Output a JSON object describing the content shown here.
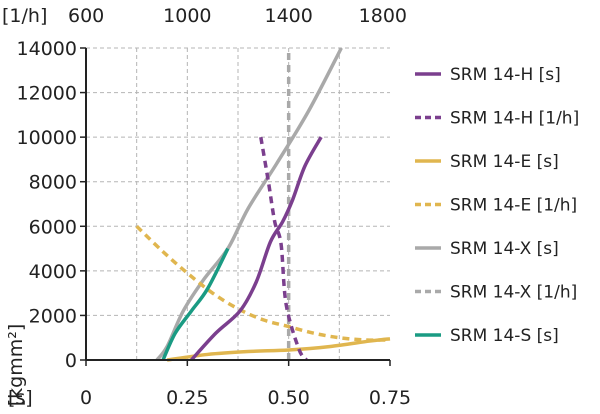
{
  "chart_data": {
    "type": "line",
    "title": "",
    "y_axis": {
      "label": "[kgmm²]",
      "range": [
        0,
        14000
      ],
      "ticks": [
        "0",
        "2000",
        "4000",
        "6000",
        "8000",
        "10000",
        "12000",
        "14000"
      ]
    },
    "x_axis_bottom": {
      "label": "[s]",
      "range": [
        0,
        0.75
      ],
      "ticks": [
        "0",
        "0.25",
        "0.50",
        "0.75"
      ],
      "tick_values": [
        0,
        0.25,
        0.5,
        0.75
      ]
    },
    "x_axis_top": {
      "label": "[1/h]",
      "range": [
        600,
        1800
      ],
      "ticks": [
        "600",
        "1000",
        "1400",
        "1800"
      ],
      "tick_values": [
        600,
        1000,
        1400,
        1800
      ]
    },
    "grid": true,
    "legend_position": "right",
    "series": [
      {
        "name": "SRM 14-H [s]",
        "axis": "bottom",
        "style": "solid",
        "color": "#7b3f8e",
        "points": [
          [
            0.26,
            0
          ],
          [
            0.32,
            1200
          ],
          [
            0.38,
            2200
          ],
          [
            0.42,
            3500
          ],
          [
            0.455,
            5300
          ],
          [
            0.485,
            6200
          ],
          [
            0.51,
            7200
          ],
          [
            0.54,
            8700
          ],
          [
            0.58,
            10000
          ]
        ]
      },
      {
        "name": "SRM 14-H [1/h]",
        "axis": "top",
        "style": "dashed",
        "color": "#7b3f8e",
        "points": [
          [
            1290,
            10000
          ],
          [
            1320,
            8000
          ],
          [
            1345,
            6200
          ],
          [
            1370,
            5200
          ],
          [
            1390,
            2500
          ],
          [
            1440,
            500
          ],
          [
            1470,
            0
          ]
        ]
      },
      {
        "name": "SRM 14-E [s]",
        "axis": "bottom",
        "style": "solid",
        "color": "#e0b64f",
        "points": [
          [
            0.2,
            0
          ],
          [
            0.3,
            250
          ],
          [
            0.4,
            380
          ],
          [
            0.5,
            450
          ],
          [
            0.6,
            600
          ],
          [
            0.7,
            850
          ],
          [
            0.75,
            950
          ]
        ]
      },
      {
        "name": "SRM 14-E [1/h]",
        "axis": "top",
        "style": "dashed",
        "color": "#e0b64f",
        "points": [
          [
            800,
            6000
          ],
          [
            900,
            4900
          ],
          [
            1000,
            3900
          ],
          [
            1100,
            3000
          ],
          [
            1200,
            2300
          ],
          [
            1300,
            1800
          ],
          [
            1400,
            1500
          ],
          [
            1500,
            1200
          ],
          [
            1600,
            1000
          ],
          [
            1700,
            900
          ],
          [
            1800,
            900
          ]
        ]
      },
      {
        "name": "SRM 14-X [s]",
        "axis": "bottom",
        "style": "solid",
        "color": "#a9a9a9",
        "points": [
          [
            0.175,
            0
          ],
          [
            0.2,
            600
          ],
          [
            0.24,
            2200
          ],
          [
            0.29,
            3600
          ],
          [
            0.35,
            5000
          ],
          [
            0.4,
            6800
          ],
          [
            0.47,
            8800
          ],
          [
            0.55,
            11200
          ],
          [
            0.63,
            14000
          ]
        ]
      },
      {
        "name": "SRM 14-X [1/h]",
        "axis": "top",
        "style": "dashed",
        "color": "#a9a9a9",
        "points": [
          [
            1400,
            0
          ],
          [
            1400,
            14000
          ]
        ]
      },
      {
        "name": "SRM 14-S [s]",
        "axis": "bottom",
        "style": "solid",
        "color": "#1a9b83",
        "points": [
          [
            0.19,
            0
          ],
          [
            0.22,
            1200
          ],
          [
            0.26,
            2200
          ],
          [
            0.3,
            3200
          ],
          [
            0.35,
            5000
          ]
        ]
      }
    ]
  }
}
